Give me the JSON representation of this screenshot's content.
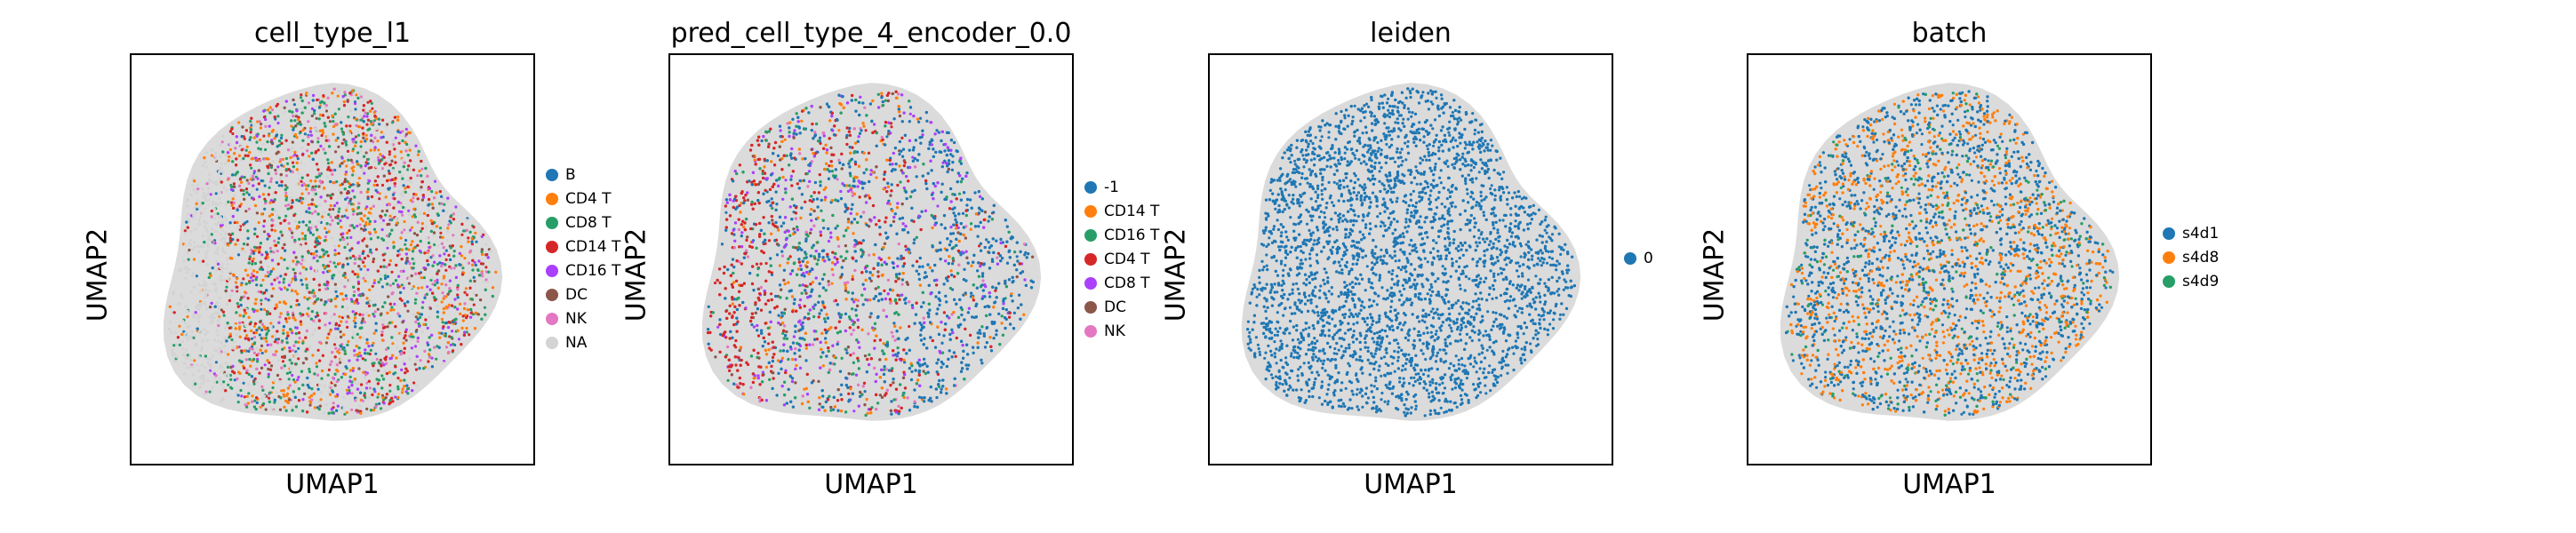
{
  "chart_data": [
    {
      "type": "scatter",
      "title": "cell_type_l1",
      "xlabel": "UMAP1",
      "ylabel": "UMAP2",
      "grid": false,
      "legend_placement": "right",
      "categories": [
        {
          "label": "B",
          "color": "#1f77b4"
        },
        {
          "label": "CD4 T",
          "color": "#ff7f0e"
        },
        {
          "label": "CD8 T",
          "color": "#279e68"
        },
        {
          "label": "CD14 T",
          "color": "#d62728"
        },
        {
          "label": "CD16 T",
          "color": "#aa40fc"
        },
        {
          "label": "DC",
          "color": "#8c564b"
        },
        {
          "label": "NK",
          "color": "#e377c2"
        },
        {
          "label": "NA",
          "color": "#d3d3d3"
        }
      ]
    },
    {
      "type": "scatter",
      "title": "pred_cell_type_4_encoder_0.0",
      "xlabel": "UMAP1",
      "ylabel": "UMAP2",
      "grid": false,
      "legend_placement": "right",
      "categories": [
        {
          "label": "-1",
          "color": "#1f77b4"
        },
        {
          "label": "CD14 T",
          "color": "#ff7f0e"
        },
        {
          "label": "CD16 T",
          "color": "#279e68"
        },
        {
          "label": "CD4 T",
          "color": "#d62728"
        },
        {
          "label": "CD8 T",
          "color": "#aa40fc"
        },
        {
          "label": "DC",
          "color": "#8c564b"
        },
        {
          "label": "NK",
          "color": "#e377c2"
        }
      ]
    },
    {
      "type": "scatter",
      "title": "leiden",
      "xlabel": "UMAP1",
      "ylabel": "UMAP2",
      "grid": false,
      "legend_placement": "right",
      "categories": [
        {
          "label": "0",
          "color": "#1f77b4"
        }
      ]
    },
    {
      "type": "scatter",
      "title": "batch",
      "xlabel": "UMAP1",
      "ylabel": "UMAP2",
      "grid": false,
      "legend_placement": "right",
      "categories": [
        {
          "label": "s4d1",
          "color": "#1f77b4"
        },
        {
          "label": "s4d8",
          "color": "#ff7f0e"
        },
        {
          "label": "s4d9",
          "color": "#279e68"
        }
      ]
    }
  ]
}
